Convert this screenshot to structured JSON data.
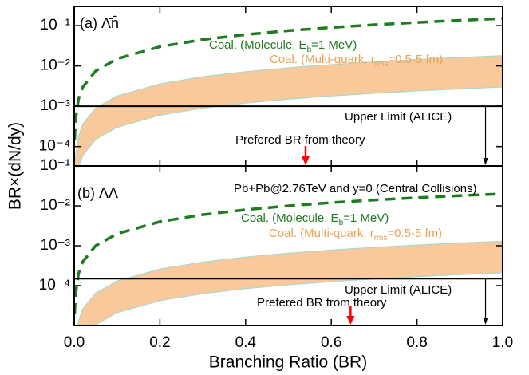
{
  "chart_data": [
    {
      "type": "line",
      "log_y": true,
      "panel": "(a) Λ̄n̄",
      "xlim": [
        0,
        1
      ],
      "ylim": [
        3.3e-05,
        0.3
      ],
      "yticks": [
        {
          "value": 0.0001,
          "label": "10⁻⁴"
        },
        {
          "value": 0.001,
          "label": "10⁻³"
        },
        {
          "value": 0.01,
          "label": "10⁻²"
        },
        {
          "value": 0.1,
          "label": "10⁻¹"
        }
      ],
      "x": [
        0.001,
        0.003,
        0.01,
        0.02,
        0.05,
        0.1,
        0.2,
        0.3,
        0.4,
        0.5,
        0.6,
        0.7,
        0.8,
        0.9,
        1.0
      ],
      "series": [
        {
          "color": "#1e7b1e",
          "values": [
            0.00015,
            0.00045,
            0.0015,
            0.003,
            0.0075,
            0.015,
            0.03,
            0.045,
            0.06,
            0.075,
            0.09,
            0.105,
            0.12,
            0.135,
            0.15
          ]
        }
      ],
      "band": {
        "color": "#f9c99b",
        "edge": "#a9d9c9",
        "upper": [
          1.8e-05,
          5.4e-05,
          0.00018,
          0.00036,
          0.0009,
          0.0018,
          0.0036,
          0.0054,
          0.0072,
          0.009,
          0.0108,
          0.0126,
          0.0144,
          0.0162,
          0.018
        ],
        "lower": [
          3e-06,
          9e-06,
          3e-05,
          6e-05,
          0.00015,
          0.0003,
          0.0006,
          0.0009,
          0.0012,
          0.0015,
          0.0018,
          0.0021,
          0.0024,
          0.0027,
          0.003
        ]
      },
      "upper_limit": 0.001,
      "limit_br": 0.96,
      "theory_br": 0.54,
      "annotations": {
        "molecule": [
          "Coal. (Molecule, E",
          "b",
          "=1 MeV)"
        ],
        "multiquark": [
          "Coal. (Multi-quark, r",
          "rms",
          "=0.5-5 fm)"
        ],
        "limit": "Upper Limit (ALICE)",
        "theory": "Prefered BR from theory"
      }
    },
    {
      "type": "line",
      "log_y": true,
      "panel": "(b) ΛΛ",
      "subtitle": "Pb+Pb@2.76TeV and y=0 (Central Collisions)",
      "xlabel": "Branching Ratio (BR)",
      "ylabel": "BR×(dN/dy)",
      "xlim": [
        0,
        1
      ],
      "xticks": [
        {
          "value": 0,
          "label": "0.0"
        },
        0.2,
        0.4,
        0.6,
        0.8,
        {
          "value": 1,
          "label": "1.0"
        }
      ],
      "ylim": [
        1e-05,
        0.1
      ],
      "yticks": [
        {
          "value": 0.0001,
          "label": "10⁻⁴"
        },
        {
          "value": 0.001,
          "label": "10⁻³"
        },
        {
          "value": 0.01,
          "label": "10⁻²"
        },
        {
          "value": 0.1,
          "label": "10⁻¹"
        }
      ],
      "x": [
        0.001,
        0.003,
        0.01,
        0.02,
        0.05,
        0.1,
        0.2,
        0.3,
        0.4,
        0.5,
        0.6,
        0.7,
        0.8,
        0.9,
        1.0
      ],
      "series": [
        {
          "color": "#1e7b1e",
          "values": [
            2e-05,
            6e-05,
            0.0002,
            0.0004,
            0.001,
            0.002,
            0.004,
            0.006,
            0.008,
            0.01,
            0.012,
            0.014,
            0.016,
            0.018,
            0.02
          ]
        }
      ],
      "band": {
        "color": "#f9c99b",
        "edge": "#a9d9c9",
        "upper": [
          1.3e-06,
          3.9e-06,
          1.3e-05,
          2.6e-05,
          6.5e-05,
          0.00013,
          0.00026,
          0.00039,
          0.00052,
          0.00065,
          0.00078,
          0.00091,
          0.00104,
          0.00117,
          0.0013
        ],
        "lower": [
          2.1e-07,
          6.3e-07,
          2.1e-06,
          4.2e-06,
          1.05e-05,
          2.1e-05,
          4.2e-05,
          6.3e-05,
          8.4e-05,
          0.000105,
          0.000126,
          0.000147,
          0.000168,
          0.000189,
          0.00021
        ]
      },
      "upper_limit": 0.00015,
      "limit_br": 0.96,
      "theory_br": 0.645,
      "annotations": {
        "molecule": [
          "Coal. (Molecule, E",
          "b",
          "=1 MeV)"
        ],
        "multiquark": [
          "Coal. (Multi-quark, r",
          "rms",
          "=0.5-5 fm)"
        ],
        "limit": "Upper Limit (ALICE)",
        "theory": "Prefered BR from theory"
      }
    }
  ]
}
